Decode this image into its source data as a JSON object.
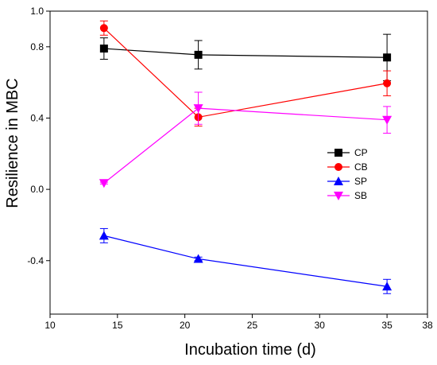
{
  "chart_data": {
    "type": "line",
    "xlabel": "Incubation time (d)",
    "ylabel": "Resilience in MBC",
    "xlim": [
      10,
      38
    ],
    "ylim": [
      -0.7,
      1.0
    ],
    "x_ticks": [
      10,
      15,
      20,
      25,
      30,
      35,
      38
    ],
    "x_tick_labels": [
      "10",
      "15",
      "20",
      "25",
      "30",
      "35",
      "38"
    ],
    "y_ticks": [
      1.0,
      0.8,
      0.4,
      0.0,
      -0.4
    ],
    "y_tick_labels": [
      "1.0",
      "0.8",
      "0.4",
      "0.0",
      "-0.4"
    ],
    "legend_position": "center-right",
    "grid": false,
    "series": [
      {
        "name": "CP",
        "color": "#000000",
        "marker": "square",
        "x": [
          14,
          21,
          35
        ],
        "y": [
          0.79,
          0.755,
          0.74
        ],
        "err": [
          0.06,
          0.08,
          0.13
        ]
      },
      {
        "name": "CB",
        "color": "#ff0000",
        "marker": "circle",
        "x": [
          14,
          21,
          35
        ],
        "y": [
          0.905,
          0.405,
          0.595
        ],
        "err": [
          0.04,
          0.05,
          0.07
        ]
      },
      {
        "name": "SP",
        "color": "#0000ff",
        "marker": "triangle-up",
        "x": [
          14,
          21,
          35
        ],
        "y": [
          -0.26,
          -0.39,
          -0.545
        ],
        "err": [
          0.04,
          0.01,
          0.04
        ]
      },
      {
        "name": "SB",
        "color": "#ff00ff",
        "marker": "triangle-down",
        "x": [
          14,
          21,
          35
        ],
        "y": [
          0.035,
          0.455,
          0.39
        ],
        "err": [
          0.005,
          0.09,
          0.075
        ]
      }
    ]
  }
}
